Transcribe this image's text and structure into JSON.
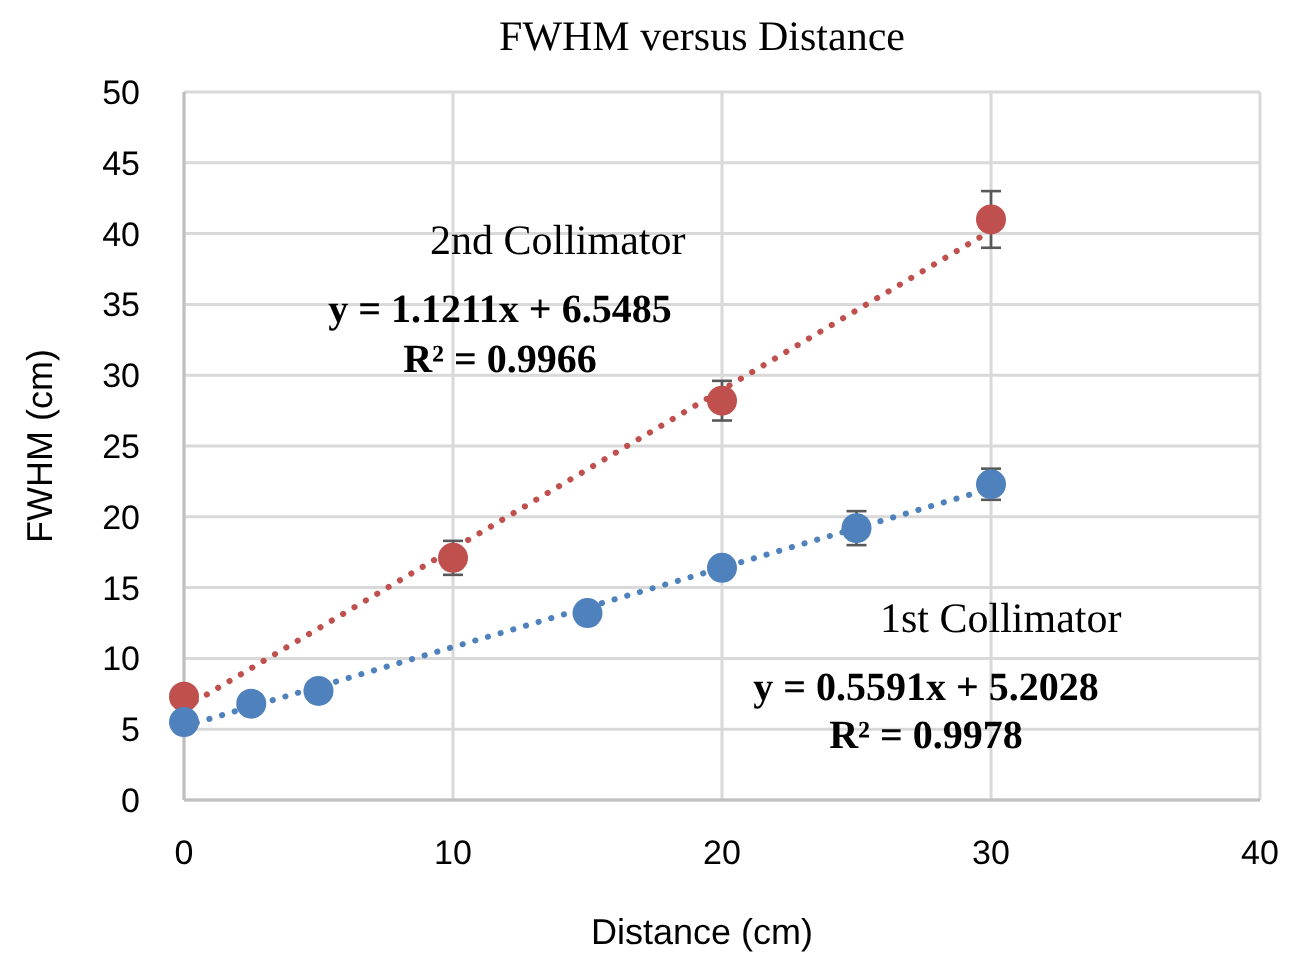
{
  "chart_data": {
    "type": "scatter",
    "title": "FWHM versus Distance",
    "xlabel": "Distance (cm)",
    "ylabel": "FWHM (cm)",
    "xlim": [
      0,
      40
    ],
    "xticks": [
      0,
      10,
      20,
      30,
      40
    ],
    "ylim": [
      0,
      50
    ],
    "yticks": [
      0,
      5,
      10,
      15,
      20,
      25,
      30,
      35,
      40,
      45,
      50
    ],
    "grid": true,
    "marker": "circle",
    "series": [
      {
        "type": "line",
        "color": "#c0504d",
        "x": [
          0,
          30
        ],
        "values": [
          6.5,
          40.2
        ],
        "line_style": "dotted",
        "marker": "none"
      },
      {
        "type": "line",
        "color": "#4f81bd",
        "x": [
          0,
          30
        ],
        "values": [
          5.2,
          22.0
        ],
        "line_style": "dotted",
        "marker": "none"
      },
      {
        "color": "#c0504d",
        "x": [
          0,
          10,
          20,
          30
        ],
        "values": [
          7.3,
          17.1,
          28.2,
          41
        ],
        "errors": [
          null,
          1.2,
          1.4,
          2
        ]
      },
      {
        "color": "#4f81bd",
        "x": [
          0,
          2.5,
          5,
          15,
          20,
          25,
          30
        ],
        "values": [
          5.5,
          6.8,
          7.7,
          13.2,
          16.4,
          19.2,
          22.3
        ],
        "errors": [
          null,
          null,
          null,
          null,
          null,
          1.2,
          1.1
        ]
      }
    ],
    "annotations": [
      "2nd Collimator",
      "y = 1.1211x + 6.5485",
      "R² = 0.9966",
      "1st Collimator",
      "y = 0.5591x + 5.2028",
      "R² = 0.9978"
    ]
  }
}
